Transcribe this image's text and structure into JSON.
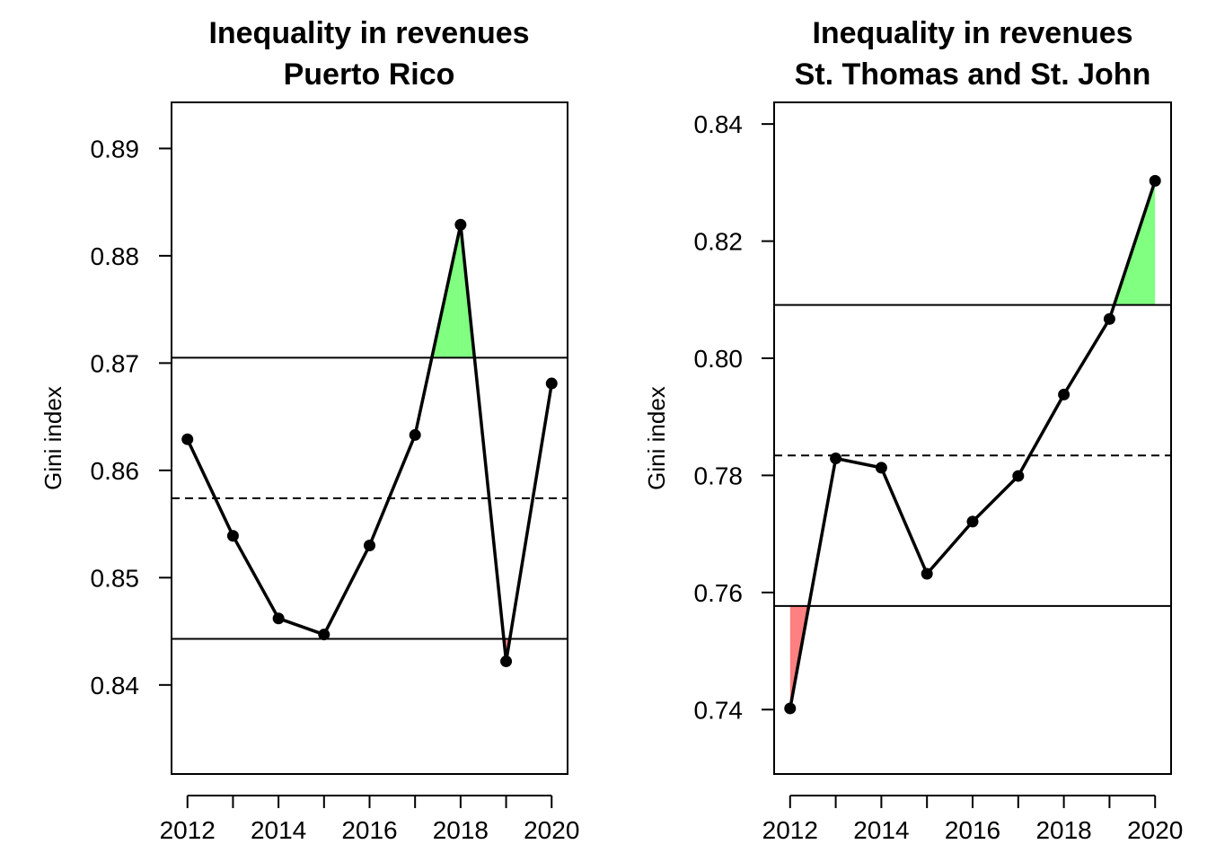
{
  "chart_data": [
    {
      "type": "line",
      "title": "Inequality in revenues",
      "subtitle": "Puerto Rico",
      "xlabel": "",
      "ylabel": "Gini index",
      "x": [
        2012,
        2013,
        2014,
        2015,
        2016,
        2017,
        2018,
        2019,
        2020
      ],
      "values": [
        0.8629,
        0.8539,
        0.8462,
        0.8447,
        0.853,
        0.8633,
        0.8829,
        0.8422,
        0.8681
      ],
      "xlim": [
        2011.65,
        2020.35
      ],
      "ylim": [
        0.8317,
        0.8943
      ],
      "xticks": [
        2012,
        2014,
        2016,
        2018,
        2020
      ],
      "xtick_labels": [
        "2012",
        "2014",
        "2016",
        "2018",
        "2020"
      ],
      "yticks": [
        0.84,
        0.85,
        0.86,
        0.87,
        0.88,
        0.89
      ],
      "ytick_labels": [
        "0.84",
        "0.85",
        "0.86",
        "0.87",
        "0.88",
        "0.89"
      ],
      "upper_limit": 0.8705,
      "lower_limit": 0.8443,
      "mean_line": 0.8574,
      "fill_above_color": "#80ff80",
      "fill_below_color": "#ff8080",
      "line_color": "#000000",
      "grid": false,
      "legend": "none"
    },
    {
      "type": "line",
      "title": "Inequality in revenues",
      "subtitle": "St. Thomas and St. John",
      "xlabel": "",
      "ylabel": "Gini index",
      "x": [
        2012,
        2013,
        2014,
        2015,
        2016,
        2017,
        2018,
        2019,
        2020
      ],
      "values": [
        0.7402,
        0.7829,
        0.7813,
        0.7632,
        0.7721,
        0.7799,
        0.7938,
        0.8067,
        0.8303
      ],
      "xlim": [
        2011.65,
        2020.35
      ],
      "ylim": [
        0.729,
        0.8437
      ],
      "xticks": [
        2012,
        2014,
        2016,
        2018,
        2020
      ],
      "xtick_labels": [
        "2012",
        "2014",
        "2016",
        "2018",
        "2020"
      ],
      "yticks": [
        0.74,
        0.76,
        0.78,
        0.8,
        0.82,
        0.84
      ],
      "ytick_labels": [
        "0.74",
        "0.76",
        "0.78",
        "0.80",
        "0.82",
        "0.84"
      ],
      "upper_limit": 0.8091,
      "lower_limit": 0.7577,
      "mean_line": 0.7834,
      "fill_above_color": "#80ff80",
      "fill_below_color": "#ff8080",
      "line_color": "#000000",
      "grid": false,
      "legend": "none"
    }
  ]
}
